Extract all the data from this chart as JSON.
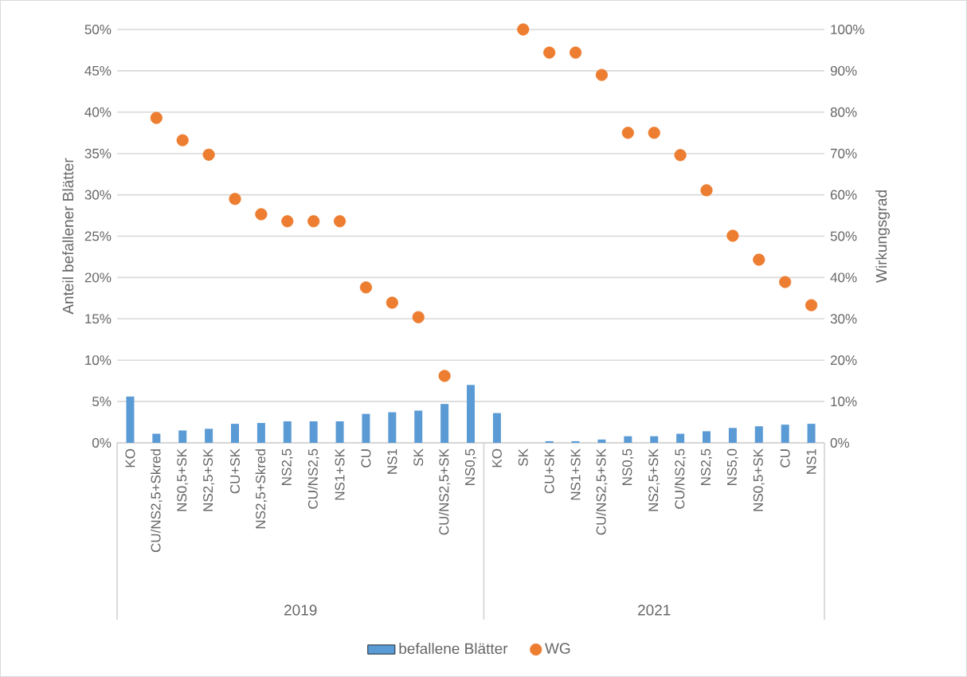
{
  "chart_data": {
    "type": "bar",
    "categories": [
      "KO",
      "CU/NS2,5+Skred",
      "NS0,5+SK",
      "NS2,5+SK",
      "CU+SK",
      "NS2,5+Skred",
      "NS2,5",
      "CU/NS2,5",
      "NS1+SK",
      "CU",
      "NS1",
      "SK",
      "CU/NS2,5+SK",
      "NS0,5",
      "KO",
      "SK",
      "CU+SK",
      "NS1+SK",
      "CU/NS2,5+SK",
      "NS0,5",
      "NS2,5+SK",
      "CU/NS2,5",
      "NS2,5",
      "NS5,0",
      "NS0,5+SK",
      "CU",
      "NS1"
    ],
    "series": [
      {
        "name": "befallene Blätter",
        "color": "#5b9bd5",
        "values": [
          5.6,
          1.1,
          1.5,
          1.7,
          2.3,
          2.4,
          2.6,
          2.6,
          2.6,
          3.5,
          3.7,
          3.9,
          4.7,
          7.0,
          3.6,
          0,
          0.2,
          0.2,
          0.4,
          0.8,
          0.8,
          1.1,
          1.4,
          1.8,
          2.0,
          2.2,
          2.3
        ]
      },
      {
        "name": "WG",
        "type": "scatter",
        "axis": "y2",
        "color": "#ed7d31",
        "values": [
          null,
          78.6,
          73.2,
          69.7,
          59.0,
          55.3,
          53.6,
          53.6,
          53.6,
          37.6,
          33.9,
          30.4,
          16.2,
          null,
          null,
          100,
          94.4,
          94.4,
          89.0,
          75.0,
          75.0,
          69.6,
          61.1,
          50.1,
          44.3,
          38.9,
          33.3
        ]
      }
    ],
    "ylabel": "Anteil befallener Blätter",
    "y2label": "Wirkungsgrad",
    "ylim": [
      0,
      50
    ],
    "yticks": [
      {
        "value": 0,
        "label": "0%"
      },
      {
        "value": 5,
        "label": "5%"
      },
      {
        "value": 10,
        "label": "10%"
      },
      {
        "value": 15,
        "label": "15%"
      },
      {
        "value": 20,
        "label": "20%"
      },
      {
        "value": 25,
        "label": "25%"
      },
      {
        "value": 30,
        "label": "30%"
      },
      {
        "value": 35,
        "label": "35%"
      },
      {
        "value": 40,
        "label": "40%"
      },
      {
        "value": 45,
        "label": "45%"
      },
      {
        "value": 50,
        "label": "50%"
      }
    ],
    "y2lim": [
      0,
      100
    ],
    "y2ticks": [
      {
        "value": 0,
        "label": "0%"
      },
      {
        "value": 10,
        "label": "10%"
      },
      {
        "value": 20,
        "label": "20%"
      },
      {
        "value": 30,
        "label": "30%"
      },
      {
        "value": 40,
        "label": "40%"
      },
      {
        "value": 50,
        "label": "50%"
      },
      {
        "value": 60,
        "label": "60%"
      },
      {
        "value": 70,
        "label": "70%"
      },
      {
        "value": 80,
        "label": "80%"
      },
      {
        "value": 90,
        "label": "90%"
      },
      {
        "value": 100,
        "label": "100%"
      }
    ],
    "annotations": [
      "2019",
      "2021"
    ],
    "grid": "y",
    "legend": "bottom"
  }
}
